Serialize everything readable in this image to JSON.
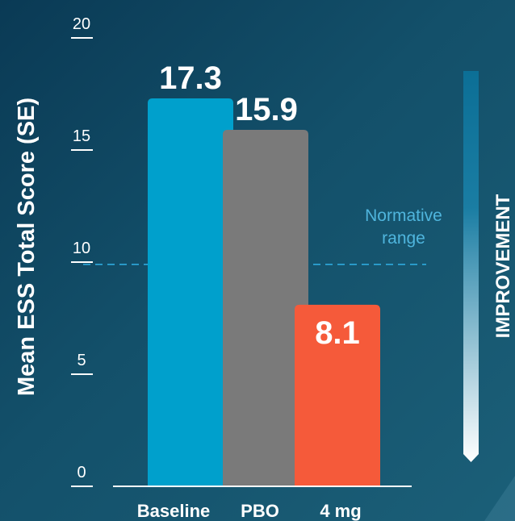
{
  "chart_data": {
    "type": "bar",
    "categories": [
      "Baseline",
      "PBO",
      "4 mg"
    ],
    "values": [
      17.3,
      15.9,
      8.1
    ],
    "value_labels": [
      "17.3",
      "15.9",
      "8.1"
    ],
    "ylabel": "Mean ESS Total Score (SE)",
    "ylim": [
      0,
      20
    ],
    "yticks": [
      0,
      5,
      10,
      15,
      20
    ],
    "grid": false,
    "colors": [
      "#00a0cc",
      "#7a7a7a",
      "#f55a3a"
    ],
    "reference_line": {
      "value": 9.9,
      "label_line1": "Normative",
      "label_line2": "range",
      "color": "#2ea9dc"
    },
    "side_label": "IMPROVEMENT"
  }
}
